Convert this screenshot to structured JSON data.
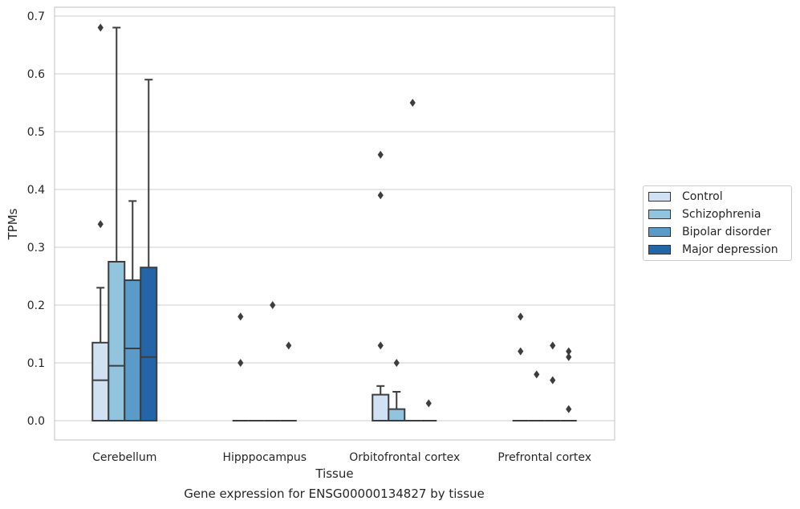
{
  "chart_data": {
    "type": "box",
    "title": "",
    "xlabel": "Tissue",
    "ylabel": "TPMs",
    "caption": "Gene expression for ENSG00000134827 by tissue",
    "categories": [
      "Cerebellum",
      "Hipppocampus",
      "Orbitofrontal cortex",
      "Prefrontal cortex"
    ],
    "ylim": [
      -0.034,
      0.715
    ],
    "yticks": [
      "0.0",
      "0.1",
      "0.2",
      "0.3",
      "0.4",
      "0.5",
      "0.6",
      "0.7"
    ],
    "ytick_values": [
      0,
      0.1,
      0.2,
      0.3,
      0.4,
      0.5,
      0.6,
      0.7
    ],
    "grid": true,
    "legend_position": "right",
    "series": [
      {
        "name": "Control",
        "color": "#cfe1f2",
        "boxes": [
          {
            "q1": 0,
            "median": 0.07,
            "q3": 0.135,
            "whisker_low": 0,
            "whisker_high": 0.23,
            "outliers": [
              0.34,
              0.68
            ]
          },
          {
            "q1": 0,
            "median": 0,
            "q3": 0,
            "whisker_low": 0,
            "whisker_high": 0,
            "outliers": [
              0.1,
              0.18
            ]
          },
          {
            "q1": 0,
            "median": 0,
            "q3": 0.045,
            "whisker_low": 0,
            "whisker_high": 0.06,
            "outliers": [
              0.13,
              0.39,
              0.46
            ]
          },
          {
            "q1": 0,
            "median": 0,
            "q3": 0,
            "whisker_low": 0,
            "whisker_high": 0,
            "outliers": [
              0.12,
              0.18
            ]
          }
        ]
      },
      {
        "name": "Schizophrenia",
        "color": "#93c4de",
        "boxes": [
          {
            "q1": 0,
            "median": 0.095,
            "q3": 0.275,
            "whisker_low": 0,
            "whisker_high": 0.68,
            "outliers": []
          },
          {
            "q1": 0,
            "median": 0,
            "q3": 0,
            "whisker_low": 0,
            "whisker_high": 0,
            "outliers": []
          },
          {
            "q1": 0,
            "median": 0,
            "q3": 0.02,
            "whisker_low": 0,
            "whisker_high": 0.05,
            "outliers": [
              0.1
            ]
          },
          {
            "q1": 0,
            "median": 0,
            "q3": 0,
            "whisker_low": 0,
            "whisker_high": 0,
            "outliers": [
              0.08
            ]
          }
        ]
      },
      {
        "name": "Bipolar disorder",
        "color": "#5a9bc9",
        "boxes": [
          {
            "q1": 0,
            "median": 0.125,
            "q3": 0.243,
            "whisker_low": 0,
            "whisker_high": 0.38,
            "outliers": []
          },
          {
            "q1": 0,
            "median": 0,
            "q3": 0,
            "whisker_low": 0,
            "whisker_high": 0,
            "outliers": [
              0.2
            ]
          },
          {
            "q1": 0,
            "median": 0,
            "q3": 0,
            "whisker_low": 0,
            "whisker_high": 0,
            "outliers": [
              0.55
            ]
          },
          {
            "q1": 0,
            "median": 0,
            "q3": 0,
            "whisker_low": 0,
            "whisker_high": 0,
            "outliers": [
              0.07,
              0.13
            ]
          }
        ]
      },
      {
        "name": "Major depression",
        "color": "#2366a8",
        "boxes": [
          {
            "q1": 0,
            "median": 0.11,
            "q3": 0.265,
            "whisker_low": 0,
            "whisker_high": 0.59,
            "outliers": []
          },
          {
            "q1": 0,
            "median": 0,
            "q3": 0,
            "whisker_low": 0,
            "whisker_high": 0,
            "outliers": [
              0.13
            ]
          },
          {
            "q1": 0,
            "median": 0,
            "q3": 0,
            "whisker_low": 0,
            "whisker_high": 0,
            "outliers": [
              0.03
            ]
          },
          {
            "q1": 0,
            "median": 0,
            "q3": 0,
            "whisker_low": 0,
            "whisker_high": 0,
            "outliers": [
              0.02,
              0.11,
              0.12
            ]
          }
        ]
      }
    ]
  }
}
